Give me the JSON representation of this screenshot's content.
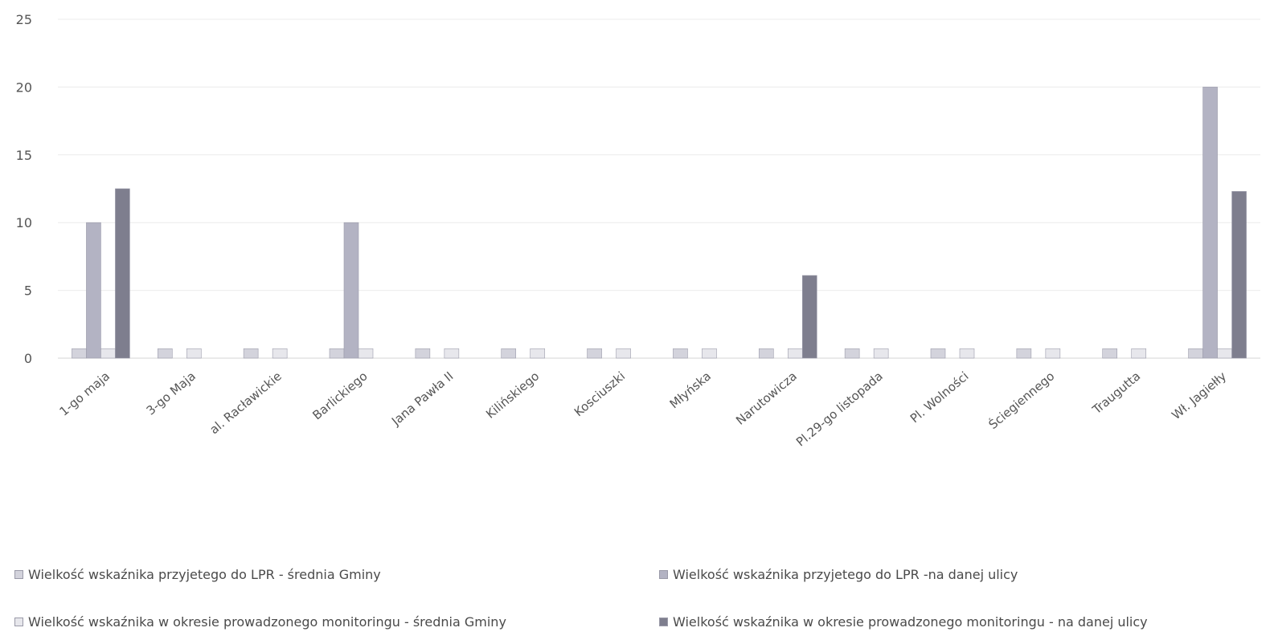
{
  "chart_data": {
    "type": "bar",
    "title": "",
    "xlabel": "",
    "ylabel": "",
    "ylim": [
      0,
      25
    ],
    "yticks": [
      0,
      5,
      10,
      15,
      20,
      25
    ],
    "grid": "horizontal",
    "legend_position": "bottom",
    "categories": [
      "1-go maja",
      "3-go Maja",
      "al. Racławickie",
      "Barlickiego",
      "Jana Pawła II",
      "Kilińskiego",
      "Kosciuszki",
      "Młyńska",
      "Narutowicza",
      "Pl.29-go listopada",
      "Pl. Wolności",
      "Ściegiennego",
      "Traugutta",
      "Wł. Jagiełły"
    ],
    "series": [
      {
        "name": "Wielkość wskaźnika przyjetego do LPR - średnia Gminy",
        "color": "#d3d3dc",
        "values": [
          0.7,
          0.7,
          0.7,
          0.7,
          0.7,
          0.7,
          0.7,
          0.7,
          0.7,
          0.7,
          0.7,
          0.7,
          0.7,
          0.7
        ]
      },
      {
        "name": "Wielkość wskaźnika przyjetego do LPR -na danej ulicy",
        "color": "#b3b3c3",
        "values": [
          10,
          0,
          0,
          10,
          0,
          0,
          0,
          0,
          0,
          0,
          0,
          0,
          0,
          20
        ]
      },
      {
        "name": "Wielkość wskaźnika w okresie prowadzonego monitoringu - średnia Gminy",
        "color": "#e7e7ec",
        "values": [
          0.7,
          0.7,
          0.7,
          0.7,
          0.7,
          0.7,
          0.7,
          0.7,
          0.7,
          0.7,
          0.7,
          0.7,
          0.7,
          0.7
        ]
      },
      {
        "name": "Wielkość wskaźnika w okresie prowadzonego monitoringu - na danej ulicy",
        "color": "#7e7e8e",
        "values": [
          12.5,
          0,
          0,
          0,
          0,
          0,
          0,
          0,
          6.1,
          0,
          0,
          0,
          0,
          12.3
        ]
      }
    ]
  }
}
